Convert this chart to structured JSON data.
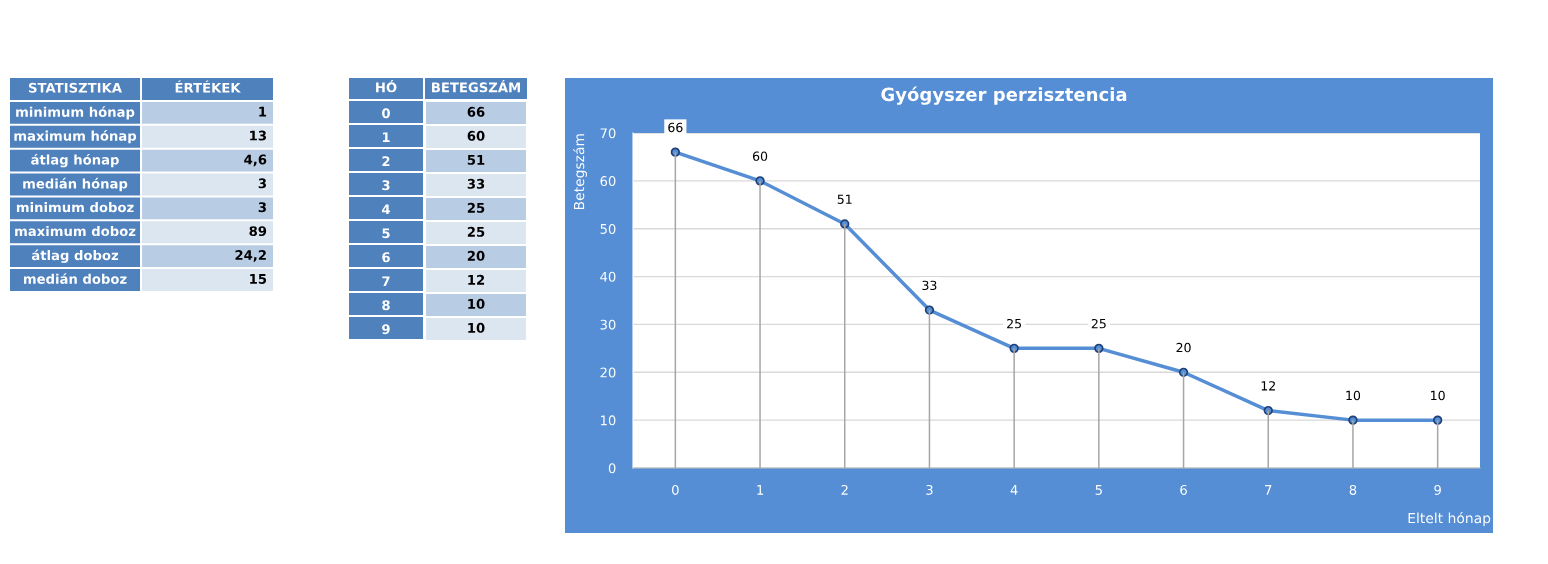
{
  "chart_data": [
    {
      "type": "other",
      "annotations": [
        "STATISZTIKA",
        "ÉRTÉKEK"
      ],
      "categories": [
        "minimum hónap",
        "maximum hónap",
        "átlag hónap",
        "medián hónap",
        "minimum doboz",
        "maximum doboz",
        "átlag doboz",
        "medián doboz"
      ],
      "value_labels": [
        "1",
        "13",
        "4,6",
        "3",
        "3",
        "89",
        "24,2",
        "15"
      ]
    },
    {
      "type": "heatmap",
      "ylabel": "HÓ",
      "categories": [
        "BETEGSZÁM"
      ],
      "y_categories": [
        "0",
        "1",
        "2",
        "3",
        "4",
        "5",
        "6",
        "7",
        "8",
        "9"
      ],
      "cells": [
        [
          66
        ],
        [
          60
        ],
        [
          51
        ],
        [
          33
        ],
        [
          25
        ],
        [
          25
        ],
        [
          20
        ],
        [
          12
        ],
        [
          10
        ],
        [
          10
        ]
      ],
      "data_labels": true
    },
    {
      "type": "line",
      "title": "Gyógyszer perzisztencia",
      "xlabel": "Eltelt hónap",
      "ylabel": "Betegszám",
      "categories": [
        "0",
        "1",
        "2",
        "3",
        "4",
        "5",
        "6",
        "7",
        "8",
        "9"
      ],
      "series": [
        {
          "type": "line",
          "color": "#558ed5",
          "marker": "circle",
          "values": [
            66,
            60,
            51,
            33,
            25,
            25,
            20,
            12,
            10,
            10
          ]
        },
        {
          "type": "bar",
          "color": "#a6a6a6",
          "values": [
            66,
            60,
            51,
            33,
            25,
            25,
            20,
            12,
            10,
            10
          ],
          "value_labels": [
            null,
            null,
            null,
            null,
            null,
            null,
            null,
            null,
            null,
            null
          ]
        }
      ],
      "ylim": [
        0,
        70
      ],
      "yticks": [
        0,
        10,
        20,
        30,
        40,
        50,
        60,
        70
      ],
      "grid": "y",
      "data_labels": true,
      "line_style": "solid"
    }
  ]
}
